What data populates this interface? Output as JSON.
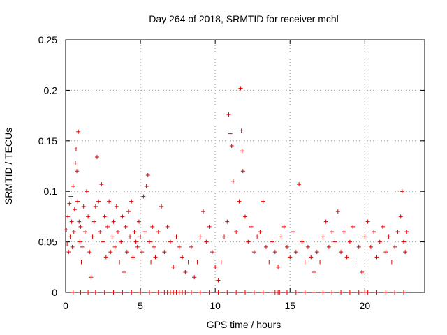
{
  "chart_data": {
    "type": "scatter",
    "title": "Day 264 of 2018, SRMTID for receiver mchl",
    "xlabel": "GPS time / hours",
    "ylabel": "SRMTID / TECUs",
    "xlim": [
      0,
      24
    ],
    "ylim": [
      0,
      0.25
    ],
    "x_ticks": [
      0,
      5,
      10,
      15,
      20
    ],
    "x_tick_labels": [
      "0",
      "5",
      "10",
      "15",
      "20"
    ],
    "y_ticks": [
      0,
      0.05,
      0.1,
      0.15,
      0.2,
      0.25
    ],
    "y_tick_labels": [
      "0",
      "0.05",
      "0.1",
      "0.15",
      "0.2",
      "0.25"
    ],
    "grid": true,
    "marker": "plus",
    "color": "#e00000",
    "series": [
      {
        "name": "SRMTID",
        "points": [
          [
            0.05,
            0.062
          ],
          [
            0.1,
            0.048
          ],
          [
            0.15,
            0.075
          ],
          [
            0.2,
            0.04
          ],
          [
            0.25,
            0.088
          ],
          [
            0.3,
            0.055
          ],
          [
            0.35,
            0.095
          ],
          [
            0.4,
            0.07
          ],
          [
            0.45,
            0.045
          ],
          [
            0.5,
            0.105
          ],
          [
            0.55,
            0.06
          ],
          [
            0.6,
            0.082
          ],
          [
            0.65,
            0.128
          ],
          [
            0.7,
            0.142
          ],
          [
            0.75,
            0.12
          ],
          [
            0.8,
            0.09
          ],
          [
            0.85,
            0.159
          ],
          [
            0.9,
            0.07
          ],
          [
            0.95,
            0.05
          ],
          [
            1.0,
            0.065
          ],
          [
            1.05,
            0.03
          ],
          [
            1.1,
            0.045
          ],
          [
            1.2,
            0.085
          ],
          [
            1.3,
            0.06
          ],
          [
            1.4,
            0.1
          ],
          [
            1.5,
            0.075
          ],
          [
            1.6,
            0.04
          ],
          [
            1.7,
            0.015
          ],
          [
            1.8,
            0.055
          ],
          [
            1.9,
            0.07
          ],
          [
            2.0,
            0.085
          ],
          [
            2.1,
            0.134
          ],
          [
            2.2,
            0.09
          ],
          [
            2.3,
            0.06
          ],
          [
            2.4,
            0.107
          ],
          [
            2.5,
            0.05
          ],
          [
            2.6,
            0.075
          ],
          [
            2.7,
            0.035
          ],
          [
            2.8,
            0.065
          ],
          [
            2.9,
            0.09
          ],
          [
            3.0,
            0.04
          ],
          [
            3.1,
            0.055
          ],
          [
            3.2,
            0.07
          ],
          [
            3.3,
            0.045
          ],
          [
            3.4,
            0.085
          ],
          [
            3.5,
            0.06
          ],
          [
            3.6,
            0.03
          ],
          [
            3.7,
            0.05
          ],
          [
            3.8,
            0.075
          ],
          [
            3.9,
            0.02
          ],
          [
            4.0,
            0.065
          ],
          [
            4.1,
            0.04
          ],
          [
            4.2,
            0.08
          ],
          [
            4.3,
            0.055
          ],
          [
            4.4,
            0.09
          ],
          [
            4.5,
            0.035
          ],
          [
            4.6,
            0.06
          ],
          [
            4.7,
            0.05
          ],
          [
            4.8,
            0.045
          ],
          [
            4.9,
            0.07
          ],
          [
            5.0,
            0.055
          ],
          [
            5.1,
            0.04
          ],
          [
            5.2,
            0.095
          ],
          [
            5.3,
            0.06
          ],
          [
            5.4,
            0.105
          ],
          [
            5.5,
            0.116
          ],
          [
            5.6,
            0.05
          ],
          [
            5.7,
            0.03
          ],
          [
            5.8,
            0.065
          ],
          [
            5.9,
            0.045
          ],
          [
            6.0,
            0.035
          ],
          [
            6.2,
            0.06
          ],
          [
            6.4,
            0.085
          ],
          [
            6.6,
            0.04
          ],
          [
            6.8,
            0.065
          ],
          [
            7.0,
            0.05
          ],
          [
            7.2,
            0.025
          ],
          [
            7.4,
            0.055
          ],
          [
            7.6,
            0.045
          ],
          [
            7.8,
            0.035
          ],
          [
            8.0,
            0.02
          ],
          [
            8.2,
            0.03
          ],
          [
            8.4,
            0.045
          ],
          [
            8.6,
            0.015
          ],
          [
            8.8,
            0.03
          ],
          [
            9.0,
            0.055
          ],
          [
            9.2,
            0.08
          ],
          [
            9.4,
            0.05
          ],
          [
            9.6,
            0.065
          ],
          [
            9.8,
            0.04
          ],
          [
            10.0,
            0.025
          ],
          [
            10.2,
            0.012
          ],
          [
            10.4,
            0.03
          ],
          [
            10.6,
            0.055
          ],
          [
            10.8,
            0.07
          ],
          [
            10.9,
            0.176
          ],
          [
            11.0,
            0.157
          ],
          [
            11.1,
            0.145
          ],
          [
            11.2,
            0.11
          ],
          [
            11.4,
            0.06
          ],
          [
            11.6,
            0.09
          ],
          [
            11.7,
            0.202
          ],
          [
            11.75,
            0.16
          ],
          [
            11.8,
            0.14
          ],
          [
            11.85,
            0.12
          ],
          [
            12.0,
            0.075
          ],
          [
            12.2,
            0.05
          ],
          [
            12.4,
            0.065
          ],
          [
            12.6,
            0.04
          ],
          [
            12.8,
            0.055
          ],
          [
            13.0,
            0.06
          ],
          [
            13.2,
            0.09
          ],
          [
            13.4,
            0.045
          ],
          [
            13.6,
            0.03
          ],
          [
            13.8,
            0.05
          ],
          [
            14.0,
            0.04
          ],
          [
            14.2,
            0.025
          ],
          [
            14.4,
            0.055
          ],
          [
            14.6,
            0.065
          ],
          [
            14.8,
            0.045
          ],
          [
            15.0,
            0.035
          ],
          [
            15.2,
            0.06
          ],
          [
            15.4,
            0.04
          ],
          [
            15.6,
            0.107
          ],
          [
            15.8,
            0.05
          ],
          [
            16.0,
            0.03
          ],
          [
            16.2,
            0.045
          ],
          [
            16.4,
            0.035
          ],
          [
            16.6,
            0.02
          ],
          [
            16.8,
            0.04
          ],
          [
            17.0,
            0.03
          ],
          [
            17.2,
            0.055
          ],
          [
            17.4,
            0.07
          ],
          [
            17.6,
            0.045
          ],
          [
            17.8,
            0.06
          ],
          [
            18.0,
            0.05
          ],
          [
            18.2,
            0.08
          ],
          [
            18.4,
            0.04
          ],
          [
            18.6,
            0.06
          ],
          [
            18.8,
            0.035
          ],
          [
            19.0,
            0.05
          ],
          [
            19.2,
            0.065
          ],
          [
            19.4,
            0.03
          ],
          [
            19.6,
            0.045
          ],
          [
            19.8,
            0.02
          ],
          [
            20.0,
            0.055
          ],
          [
            20.2,
            0.07
          ],
          [
            20.4,
            0.045
          ],
          [
            20.6,
            0.06
          ],
          [
            20.8,
            0.035
          ],
          [
            21.0,
            0.05
          ],
          [
            21.2,
            0.065
          ],
          [
            21.4,
            0.04
          ],
          [
            21.6,
            0.055
          ],
          [
            21.8,
            0.03
          ],
          [
            22.0,
            0.045
          ],
          [
            22.2,
            0.06
          ],
          [
            22.4,
            0.075
          ],
          [
            22.5,
            0.1
          ],
          [
            22.6,
            0.05
          ],
          [
            22.7,
            0.04
          ],
          [
            22.8,
            0.06
          ]
        ]
      }
    ],
    "zero_value_times": [
      0.5,
      1.0,
      1.5,
      2.0,
      2.6,
      3.2,
      3.8,
      4.4,
      5.0,
      5.6,
      6.2,
      6.6,
      6.8,
      7.0,
      7.2,
      7.4,
      7.6,
      7.8,
      8.0,
      8.4,
      9.0,
      9.6,
      10.2,
      10.8,
      11.4,
      12.0,
      12.6,
      13.2,
      13.8,
      14.0,
      14.2,
      14.3,
      14.8,
      15.4,
      16.0,
      16.6,
      17.2,
      17.8,
      18.4,
      19.0,
      19.6,
      20.0,
      20.2,
      20.8,
      21.4,
      22.0,
      22.6
    ]
  }
}
